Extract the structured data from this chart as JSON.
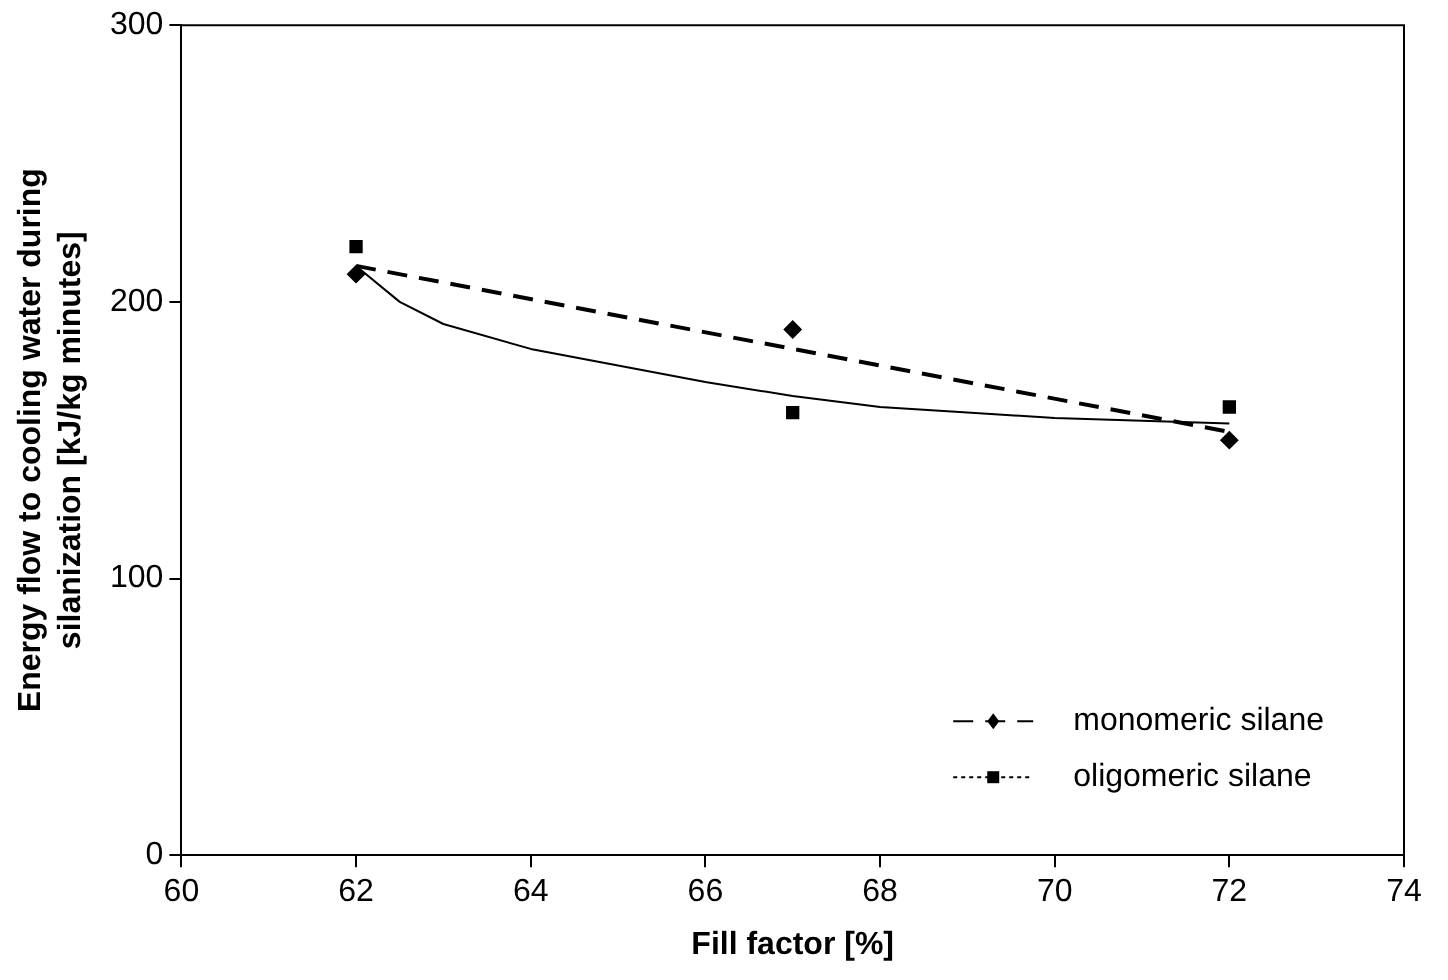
{
  "chart_data": {
    "type": "scatter",
    "xlabel": "Fill factor [%]",
    "ylabel": "Energy flow to cooling water during silanization [kJ/kg minutes]",
    "x": [
      62,
      67,
      72
    ],
    "xlim": [
      60,
      74
    ],
    "xticks": [
      60,
      62,
      64,
      66,
      68,
      70,
      72,
      74
    ],
    "ylim": [
      0,
      300
    ],
    "yticks": [
      0,
      100,
      200,
      300
    ],
    "grid": false,
    "legend": "bottom right",
    "series": [
      {
        "name": "monomeric silane",
        "type": "scatter",
        "color": "#000000",
        "marker": "diamond",
        "line_style": "dashed",
        "values": [
          210,
          190,
          150
        ]
      },
      {
        "name": "oligomeric silane",
        "type": "scatter",
        "color": "#000000",
        "marker": "square",
        "line_style": "dotted",
        "values": [
          220,
          160,
          162
        ]
      },
      {
        "type": "line",
        "color": "#000000",
        "marker": "none",
        "line_style": "dashed",
        "x": [
          62,
          72
        ],
        "values": [
          213,
          153
        ]
      },
      {
        "type": "line",
        "color": "#000000",
        "marker": "none",
        "line_style": "solid",
        "x": [
          62,
          62.5,
          63,
          64,
          65,
          66,
          67,
          68,
          69,
          70,
          71,
          72
        ],
        "values": [
          213,
          200,
          192,
          183,
          177,
          171,
          166,
          162,
          160,
          158,
          157,
          156
        ]
      }
    ]
  }
}
